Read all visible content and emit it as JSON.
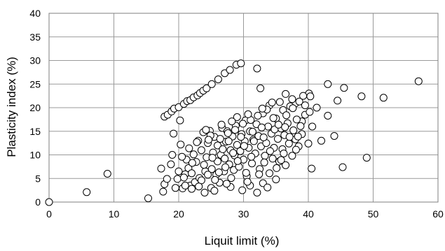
{
  "chart_data": {
    "type": "scatter",
    "xlabel": "Liquit limit (%)",
    "ylabel": "Plasticity index (%)",
    "xlim": [
      0,
      60
    ],
    "ylim": [
      0,
      40
    ],
    "xticks": [
      "0",
      "10",
      "20",
      "30",
      "40",
      "50",
      "60"
    ],
    "yticks": [
      "0",
      "5",
      "10",
      "15",
      "20",
      "25",
      "30",
      "35",
      "40"
    ],
    "grid": true,
    "colors": {
      "marker_fill": "#ffffff",
      "marker_stroke": "#000000",
      "grid": "#9a9a9a"
    },
    "points": [
      [
        0,
        0
      ],
      [
        5.8,
        2.1
      ],
      [
        9,
        6
      ],
      [
        15.3,
        0.8
      ],
      [
        17.8,
        18.1
      ],
      [
        18.3,
        18.5
      ],
      [
        18.9,
        19.2
      ],
      [
        19.3,
        19.8
      ],
      [
        20,
        20.1
      ],
      [
        20.8,
        20.8
      ],
      [
        21.3,
        21.4
      ],
      [
        21.8,
        21.6
      ],
      [
        22.3,
        22.2
      ],
      [
        22.9,
        22.6
      ],
      [
        23.3,
        23.1
      ],
      [
        23.8,
        23.6
      ],
      [
        24.3,
        24.1
      ],
      [
        25.1,
        25
      ],
      [
        26.1,
        26
      ],
      [
        27.1,
        27.3
      ],
      [
        27.9,
        28
      ],
      [
        28.9,
        29.1
      ],
      [
        29.6,
        29.4
      ],
      [
        32.1,
        28.3
      ],
      [
        32.6,
        24.1
      ],
      [
        40.1,
        23
      ],
      [
        40.3,
        22.4
      ],
      [
        43,
        25
      ],
      [
        45.5,
        24.2
      ],
      [
        48.2,
        22.4
      ],
      [
        51.6,
        22.1
      ],
      [
        57,
        25.6
      ],
      [
        40.5,
        7.1
      ],
      [
        45.3,
        7.4
      ],
      [
        49,
        9.4
      ],
      [
        42,
        13
      ],
      [
        44,
        14
      ],
      [
        43,
        18.3
      ],
      [
        44.5,
        21.5
      ],
      [
        41.3,
        20
      ],
      [
        39.5,
        20.5
      ],
      [
        38,
        20.9
      ],
      [
        37.5,
        21.8
      ],
      [
        36.5,
        22.9
      ],
      [
        39,
        17.1
      ],
      [
        40.6,
        16
      ],
      [
        17.3,
        7.1
      ],
      [
        17.6,
        2.2
      ],
      [
        17.8,
        3.8
      ],
      [
        18.2,
        4.9
      ],
      [
        18.8,
        8
      ],
      [
        19,
        10
      ],
      [
        19.2,
        14.5
      ],
      [
        19.5,
        3
      ],
      [
        19.8,
        4.9
      ],
      [
        20,
        6.5
      ],
      [
        20.3,
        12.2
      ],
      [
        20.2,
        17.3
      ],
      [
        20.6,
        2.9
      ],
      [
        21,
        5.9
      ],
      [
        21.2,
        9
      ],
      [
        21.5,
        7.2
      ],
      [
        21.8,
        3.5
      ],
      [
        22,
        6.1
      ],
      [
        22.3,
        10.1
      ],
      [
        22.5,
        4.2
      ],
      [
        22.7,
        8.5
      ],
      [
        23,
        13
      ],
      [
        23.2,
        5.1
      ],
      [
        23.5,
        11
      ],
      [
        23.8,
        14.8
      ],
      [
        24,
        2
      ],
      [
        24.1,
        6.5
      ],
      [
        24.3,
        9.5
      ],
      [
        24.5,
        12.5
      ],
      [
        24.8,
        15.1
      ],
      [
        25,
        3
      ],
      [
        25.1,
        7
      ],
      [
        25.3,
        10.5
      ],
      [
        25.5,
        13.8
      ],
      [
        25.8,
        5.8
      ],
      [
        26,
        8.6
      ],
      [
        26,
        12
      ],
      [
        26.3,
        4.1
      ],
      [
        26.5,
        10
      ],
      [
        26.7,
        15.7
      ],
      [
        27,
        6.5
      ],
      [
        27.1,
        9.2
      ],
      [
        27.3,
        12.8
      ],
      [
        27.5,
        15
      ],
      [
        27.8,
        8
      ],
      [
        28,
        11
      ],
      [
        28,
        3.2
      ],
      [
        28.3,
        13.9
      ],
      [
        28.5,
        6.8
      ],
      [
        28.6,
        9.9
      ],
      [
        28.8,
        16.2
      ],
      [
        29,
        12.1
      ],
      [
        29,
        18
      ],
      [
        29.3,
        7.5
      ],
      [
        29.5,
        10.8
      ],
      [
        29.7,
        14.4
      ],
      [
        29.8,
        2.5
      ],
      [
        30,
        9
      ],
      [
        30.2,
        12.9
      ],
      [
        30.3,
        17.3
      ],
      [
        30.5,
        5.5
      ],
      [
        30.8,
        11.5
      ],
      [
        31,
        15
      ],
      [
        31,
        3.5
      ],
      [
        31.3,
        8.2
      ],
      [
        31.5,
        13.2
      ],
      [
        31.8,
        10.3
      ],
      [
        32,
        16.5
      ],
      [
        32.1,
        2
      ],
      [
        32.3,
        14
      ],
      [
        32.5,
        7
      ],
      [
        32.7,
        11.8
      ],
      [
        33,
        18.8
      ],
      [
        33,
        4
      ],
      [
        33.3,
        9.8
      ],
      [
        33.5,
        12.5
      ],
      [
        33.8,
        16
      ],
      [
        34,
        6.1
      ],
      [
        34,
        20.5
      ],
      [
        34.3,
        14.5
      ],
      [
        34.5,
        9.2
      ],
      [
        34.7,
        11.5
      ],
      [
        35,
        17.7
      ],
      [
        35,
        4.8
      ],
      [
        35.3,
        13.4
      ],
      [
        35.5,
        8.6
      ],
      [
        35.8,
        15.6
      ],
      [
        36,
        11.2
      ],
      [
        36.1,
        19.5
      ],
      [
        36.3,
        14.2
      ],
      [
        36.5,
        7.8
      ],
      [
        36.8,
        16.7
      ],
      [
        37,
        12.4
      ],
      [
        37.2,
        20.3
      ],
      [
        37.5,
        9.8
      ],
      [
        37.7,
        15.2
      ],
      [
        38,
        13.3
      ],
      [
        38.2,
        17.5
      ],
      [
        38.5,
        11.8
      ],
      [
        38.8,
        16.1
      ],
      [
        39,
        14.4
      ],
      [
        39.5,
        18.5
      ],
      [
        40,
        12.4
      ],
      [
        40.2,
        19.1
      ],
      [
        21,
        3.5
      ],
      [
        22,
        2.8
      ],
      [
        23.5,
        4.6
      ],
      [
        24.5,
        5.8
      ],
      [
        25.5,
        2.4
      ],
      [
        26.2,
        6.3
      ],
      [
        27.2,
        7.4
      ],
      [
        28.1,
        5.1
      ],
      [
        29.1,
        8.7
      ],
      [
        30.4,
        6.2
      ],
      [
        31.2,
        9.6
      ],
      [
        32.4,
        5.9
      ],
      [
        33.2,
        8.4
      ],
      [
        34.1,
        10.8
      ],
      [
        35.1,
        7.2
      ],
      [
        36.2,
        10.3
      ],
      [
        37.1,
        13.8
      ],
      [
        38.1,
        11.1
      ],
      [
        22.8,
        12.7
      ],
      [
        24.9,
        14.1
      ],
      [
        26.4,
        13.4
      ],
      [
        27.6,
        14.6
      ],
      [
        28.7,
        15.3
      ],
      [
        29.9,
        16.6
      ],
      [
        31.1,
        17.4
      ],
      [
        32.2,
        18.3
      ],
      [
        33.6,
        19.6
      ],
      [
        34.6,
        17.8
      ],
      [
        35.6,
        21.2
      ],
      [
        36.6,
        18.4
      ],
      [
        37.6,
        19.9
      ],
      [
        38.6,
        21.3
      ],
      [
        39.2,
        22.5
      ],
      [
        23.9,
        7.9
      ],
      [
        25.2,
        9.4
      ],
      [
        26.8,
        11.2
      ],
      [
        28.4,
        10.4
      ],
      [
        30.1,
        11.9
      ],
      [
        31.6,
        12.9
      ],
      [
        33.1,
        13.7
      ],
      [
        34.8,
        15.4
      ],
      [
        36.4,
        15.9
      ],
      [
        20.5,
        9.6
      ],
      [
        21.6,
        11.4
      ],
      [
        22.1,
        8.3
      ],
      [
        24.6,
        13.2
      ],
      [
        27.7,
        12.9
      ],
      [
        29.6,
        13.8
      ],
      [
        31.4,
        14.9
      ],
      [
        32.8,
        15.8
      ],
      [
        35.4,
        16.4
      ],
      [
        20.8,
        5.2
      ],
      [
        23.1,
        3.3
      ],
      [
        25.6,
        4.7
      ],
      [
        27.4,
        3.9
      ],
      [
        30.6,
        4.3
      ],
      [
        33.7,
        3.1
      ],
      [
        35.8,
        8.9
      ],
      [
        38.4,
        13.9
      ],
      [
        24.2,
        15.3
      ],
      [
        26.6,
        16.4
      ],
      [
        28.2,
        17.1
      ],
      [
        30.7,
        18.6
      ],
      [
        32.9,
        19.8
      ],
      [
        34.4,
        21.1
      ]
    ]
  }
}
